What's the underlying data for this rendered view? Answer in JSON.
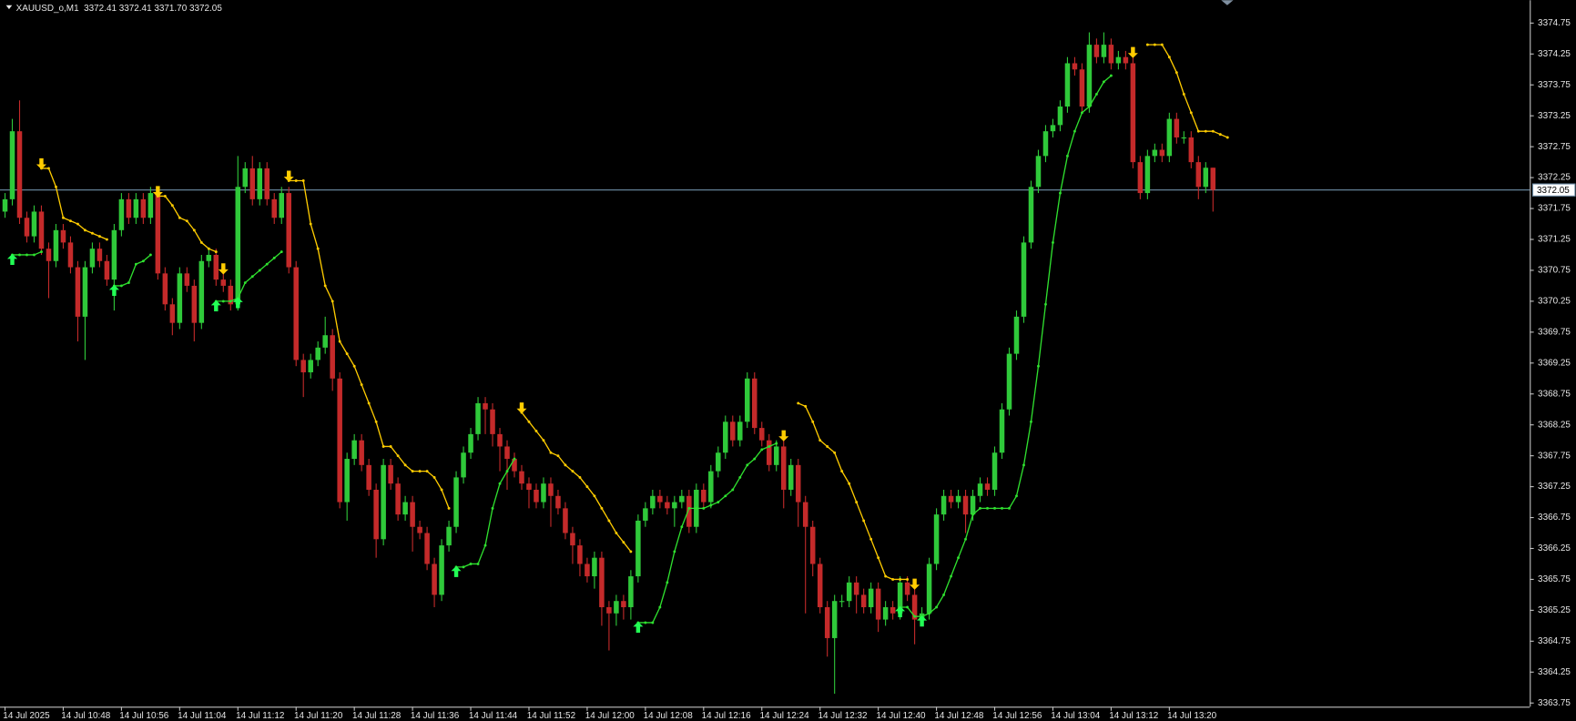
{
  "chart_data": {
    "type": "candlestick",
    "title": "XAUUSD_o,M1",
    "quote": "3372.41 3372.41 3371.70 3372.05",
    "bull_color": "#2fc93a",
    "bear_color": "#c42a2a",
    "current_price": 3372.05,
    "current_price_color": "#6f8fa8",
    "ylim": [
      3363.69,
      3375.12
    ],
    "yticks": [
      3374.75,
      3374.25,
      3373.75,
      3373.25,
      3372.75,
      3372.25,
      3371.75,
      3371.25,
      3370.75,
      3370.25,
      3369.75,
      3369.25,
      3368.75,
      3368.25,
      3367.75,
      3367.25,
      3366.75,
      3366.25,
      3365.75,
      3365.25,
      3364.75,
      3364.25,
      3363.75
    ],
    "xticks": [
      {
        "value": 0,
        "label": "14 Jul 2025"
      },
      {
        "value": 8,
        "label": "14 Jul 10:48"
      },
      {
        "value": 16,
        "label": "14 Jul 10:56"
      },
      {
        "value": 24,
        "label": "14 Jul 11:04"
      },
      {
        "value": 32,
        "label": "14 Jul 11:12"
      },
      {
        "value": 40,
        "label": "14 Jul 11:20"
      },
      {
        "value": 48,
        "label": "14 Jul 11:28"
      },
      {
        "value": 56,
        "label": "14 Jul 11:36"
      },
      {
        "value": 64,
        "label": "14 Jul 11:44"
      },
      {
        "value": 72,
        "label": "14 Jul 11:52"
      },
      {
        "value": 80,
        "label": "14 Jul 12:00"
      },
      {
        "value": 88,
        "label": "14 Jul 12:08"
      },
      {
        "value": 96,
        "label": "14 Jul 12:16"
      },
      {
        "value": 104,
        "label": "14 Jul 12:24"
      },
      {
        "value": 112,
        "label": "14 Jul 12:32"
      },
      {
        "value": 120,
        "label": "14 Jul 12:40"
      },
      {
        "value": 128,
        "label": "14 Jul 12:48"
      },
      {
        "value": 136,
        "label": "14 Jul 12:56"
      },
      {
        "value": 144,
        "label": "14 Jul 13:04"
      },
      {
        "value": 152,
        "label": "14 Jul 13:12"
      },
      {
        "value": 160,
        "label": "14 Jul 13:20"
      }
    ],
    "open": [
      3371.7,
      3371.9,
      3373.0,
      3371.6,
      3371.3,
      3371.7,
      3371.1,
      3370.9,
      3371.4,
      3371.2,
      3370.8,
      3370.0,
      3370.8,
      3371.1,
      3370.9,
      3370.6,
      3371.4,
      3371.9,
      3371.6,
      3371.9,
      3371.6,
      3372.0,
      3370.7,
      3370.2,
      3369.9,
      3370.7,
      3370.5,
      3369.9,
      3370.9,
      3371.0,
      3370.6,
      3370.5,
      3370.2,
      3372.1,
      3372.4,
      3371.9,
      3372.4,
      3371.9,
      3371.6,
      3372.0,
      3370.8,
      3369.3,
      3369.1,
      3369.3,
      3369.5,
      3369.7,
      3369.0,
      3367.0,
      3367.7,
      3368.0,
      3367.6,
      3367.2,
      3366.4,
      3367.6,
      3367.3,
      3366.8,
      3367.0,
      3366.6,
      3366.5,
      3366.0,
      3365.5,
      3366.3,
      3366.6,
      3367.4,
      3367.8,
      3368.1,
      3368.6,
      3368.5,
      3368.1,
      3367.9,
      3367.7,
      3367.5,
      3367.3,
      3367.2,
      3367.0,
      3367.3,
      3367.1,
      3366.9,
      3366.5,
      3366.3,
      3366.0,
      3365.8,
      3366.1,
      3365.3,
      3365.2,
      3365.4,
      3365.3,
      3365.8,
      3366.7,
      3366.9,
      3367.1,
      3367.0,
      3366.9,
      3367.0,
      3367.1,
      3366.6,
      3367.2,
      3367.0,
      3367.5,
      3367.8,
      3368.3,
      3368.0,
      3368.3,
      3369.0,
      3368.2,
      3368.0,
      3367.6,
      3367.9,
      3367.2,
      3367.6,
      3367.0,
      3366.6,
      3366.0,
      3365.3,
      3364.8,
      3365.4,
      3365.4,
      3365.7,
      3365.5,
      3365.3,
      3365.6,
      3365.1,
      3365.3,
      3365.2,
      3365.7,
      3365.5,
      3365.1,
      3365.2,
      3366.0,
      3366.8,
      3367.1,
      3367.0,
      3367.1,
      3366.8,
      3367.1,
      3367.3,
      3367.2,
      3367.8,
      3368.5,
      3369.4,
      3370.0,
      3371.2,
      3372.1,
      3372.6,
      3373.0,
      3373.1,
      3373.4,
      3374.1,
      3374.0,
      3373.4,
      3374.4,
      3374.2,
      3374.4,
      3374.1,
      3374.2,
      3374.1,
      3372.5,
      3372.0,
      3372.6,
      3372.7,
      3372.6,
      3373.2,
      3372.9,
      3372.9,
      3372.5,
      3372.1,
      3372.41
    ],
    "high": [
      3372.0,
      3373.2,
      3373.5,
      3371.7,
      3371.8,
      3371.8,
      3371.2,
      3371.5,
      3371.5,
      3371.3,
      3370.9,
      3370.9,
      3371.2,
      3371.2,
      3371.0,
      3371.5,
      3372.0,
      3372.0,
      3372.0,
      3372.0,
      3372.1,
      3372.1,
      3370.8,
      3370.3,
      3370.8,
      3370.8,
      3370.6,
      3371.0,
      3371.1,
      3371.1,
      3370.7,
      3370.6,
      3372.6,
      3372.5,
      3372.6,
      3372.5,
      3372.5,
      3372.0,
      3372.1,
      3372.1,
      3370.9,
      3369.4,
      3369.4,
      3369.6,
      3370.0,
      3369.8,
      3369.1,
      3367.8,
      3368.1,
      3368.1,
      3367.7,
      3367.3,
      3367.7,
      3367.7,
      3367.4,
      3367.1,
      3367.1,
      3366.7,
      3366.6,
      3366.1,
      3366.4,
      3366.7,
      3367.5,
      3367.9,
      3368.2,
      3368.7,
      3368.7,
      3368.6,
      3368.2,
      3368.0,
      3367.8,
      3367.6,
      3367.4,
      3367.3,
      3367.4,
      3367.4,
      3367.2,
      3367.0,
      3366.6,
      3366.4,
      3366.1,
      3366.2,
      3366.2,
      3365.4,
      3365.5,
      3365.5,
      3365.9,
      3366.8,
      3367.0,
      3367.2,
      3367.2,
      3367.1,
      3367.1,
      3367.2,
      3367.2,
      3367.3,
      3367.3,
      3367.6,
      3367.9,
      3368.4,
      3368.4,
      3368.4,
      3369.1,
      3369.1,
      3368.3,
      3368.1,
      3368.0,
      3368.0,
      3367.7,
      3367.7,
      3367.1,
      3366.7,
      3366.1,
      3365.4,
      3365.5,
      3365.5,
      3365.8,
      3365.8,
      3365.6,
      3365.7,
      3365.7,
      3365.4,
      3365.4,
      3365.8,
      3365.8,
      3365.6,
      3365.3,
      3366.1,
      3366.9,
      3367.2,
      3367.2,
      3367.2,
      3367.2,
      3367.2,
      3367.4,
      3367.4,
      3367.9,
      3368.6,
      3369.5,
      3370.1,
      3371.3,
      3372.2,
      3372.7,
      3373.1,
      3373.2,
      3373.5,
      3374.2,
      3374.2,
      3374.1,
      3374.6,
      3374.5,
      3374.6,
      3374.5,
      3374.3,
      3374.3,
      3374.2,
      3372.6,
      3372.7,
      3372.8,
      3372.8,
      3373.3,
      3373.3,
      3373.0,
      3373.0,
      3372.6,
      3372.5,
      3372.41
    ],
    "low": [
      3371.6,
      3371.8,
      3371.5,
      3371.2,
      3371.2,
      3371.0,
      3370.3,
      3370.8,
      3371.1,
      3370.7,
      3369.6,
      3369.3,
      3370.7,
      3370.8,
      3370.5,
      3370.1,
      3371.3,
      3371.5,
      3371.5,
      3371.5,
      3371.5,
      3370.6,
      3370.1,
      3369.7,
      3369.8,
      3370.4,
      3369.6,
      3369.8,
      3370.8,
      3370.5,
      3370.4,
      3370.1,
      3370.1,
      3372.0,
      3371.8,
      3371.8,
      3371.8,
      3371.5,
      3371.5,
      3370.7,
      3369.2,
      3368.7,
      3369.0,
      3369.2,
      3369.4,
      3368.8,
      3366.9,
      3366.7,
      3367.6,
      3367.5,
      3367.1,
      3366.1,
      3366.3,
      3367.2,
      3366.7,
      3366.7,
      3366.2,
      3366.4,
      3365.9,
      3365.3,
      3365.4,
      3366.2,
      3366.5,
      3367.3,
      3367.7,
      3368.0,
      3368.1,
      3367.9,
      3367.5,
      3367.2,
      3367.4,
      3367.2,
      3366.9,
      3366.9,
      3366.9,
      3366.6,
      3366.8,
      3366.4,
      3366.0,
      3365.8,
      3365.7,
      3365.6,
      3365.0,
      3364.6,
      3365.0,
      3365.1,
      3365.1,
      3365.7,
      3366.6,
      3366.8,
      3366.9,
      3366.8,
      3366.6,
      3366.9,
      3366.5,
      3366.5,
      3366.9,
      3366.9,
      3367.4,
      3367.7,
      3367.9,
      3367.9,
      3368.2,
      3368.1,
      3367.9,
      3367.5,
      3367.5,
      3366.9,
      3367.1,
      3366.6,
      3365.2,
      3365.8,
      3365.2,
      3364.5,
      3363.9,
      3365.3,
      3365.3,
      3365.2,
      3365.2,
      3365.2,
      3364.9,
      3365.0,
      3365.1,
      3365.1,
      3365.4,
      3364.7,
      3365.0,
      3365.1,
      3365.9,
      3366.7,
      3366.9,
      3366.9,
      3366.5,
      3366.7,
      3367.0,
      3367.1,
      3367.1,
      3367.7,
      3368.4,
      3369.3,
      3369.9,
      3371.1,
      3372.0,
      3372.5,
      3372.9,
      3373.0,
      3373.3,
      3373.9,
      3373.3,
      3373.3,
      3374.1,
      3374.1,
      3374.0,
      3374.0,
      3374.0,
      3372.4,
      3371.9,
      3371.9,
      3372.5,
      3372.5,
      3372.5,
      3372.8,
      3372.8,
      3372.4,
      3371.9,
      3372.0,
      3371.7
    ],
    "close": [
      3371.9,
      3373.0,
      3371.6,
      3371.3,
      3371.7,
      3371.1,
      3370.9,
      3371.4,
      3371.2,
      3370.8,
      3370.0,
      3370.8,
      3371.1,
      3370.9,
      3370.6,
      3371.4,
      3371.9,
      3371.6,
      3371.9,
      3371.6,
      3372.0,
      3370.7,
      3370.2,
      3369.9,
      3370.7,
      3370.5,
      3369.9,
      3370.9,
      3371.0,
      3370.6,
      3370.5,
      3370.2,
      3372.1,
      3372.4,
      3371.9,
      3372.4,
      3371.9,
      3371.6,
      3372.0,
      3370.8,
      3369.3,
      3369.1,
      3369.3,
      3369.5,
      3369.7,
      3369.0,
      3367.0,
      3367.7,
      3368.0,
      3367.6,
      3367.2,
      3366.4,
      3367.6,
      3367.3,
      3366.8,
      3367.0,
      3366.6,
      3366.5,
      3366.0,
      3365.5,
      3366.3,
      3366.6,
      3367.4,
      3367.8,
      3368.1,
      3368.6,
      3368.5,
      3368.1,
      3367.9,
      3367.7,
      3367.5,
      3367.3,
      3367.2,
      3367.0,
      3367.3,
      3367.1,
      3366.9,
      3366.5,
      3366.3,
      3366.0,
      3365.8,
      3366.1,
      3365.3,
      3365.2,
      3365.4,
      3365.3,
      3365.8,
      3366.7,
      3366.9,
      3367.1,
      3367.0,
      3366.9,
      3367.0,
      3367.1,
      3366.6,
      3367.2,
      3367.0,
      3367.5,
      3367.8,
      3368.3,
      3368.0,
      3368.3,
      3369.0,
      3368.2,
      3368.0,
      3367.6,
      3367.9,
      3367.2,
      3367.6,
      3367.0,
      3366.6,
      3366.0,
      3365.3,
      3364.8,
      3365.4,
      3365.4,
      3365.7,
      3365.5,
      3365.3,
      3365.6,
      3365.1,
      3365.3,
      3365.2,
      3365.7,
      3365.5,
      3365.1,
      3365.2,
      3366.0,
      3366.8,
      3367.1,
      3367.0,
      3367.1,
      3366.8,
      3367.1,
      3367.3,
      3367.2,
      3367.8,
      3368.5,
      3369.4,
      3370.0,
      3371.2,
      3372.1,
      3372.6,
      3373.0,
      3373.1,
      3373.4,
      3374.1,
      3374.0,
      3373.4,
      3374.4,
      3374.2,
      3374.4,
      3374.1,
      3374.2,
      3374.1,
      3372.5,
      3372.0,
      3372.6,
      3372.7,
      3372.6,
      3373.2,
      3372.9,
      3372.9,
      3372.5,
      3372.1,
      3372.41,
      3372.05
    ],
    "indicator_lines": [
      {
        "color": "#ffcc00",
        "values": [
          null,
          null,
          null,
          null,
          null,
          3372.4,
          3372.4,
          3372.1,
          3371.6,
          3371.55,
          3371.5,
          3371.4,
          3371.35,
          3371.3,
          3371.25,
          null,
          null,
          null,
          null,
          null,
          null,
          3371.95,
          3371.95,
          3371.8,
          3371.6,
          3371.55,
          3371.4,
          3371.2,
          3371.1,
          3371.05,
          null,
          null,
          null,
          null,
          null,
          null,
          null,
          null,
          null,
          3372.2,
          3372.2,
          3372.2,
          3371.5,
          3371.1,
          3370.5,
          3370.25,
          3369.6,
          3369.4,
          3369.2,
          3368.9,
          3368.6,
          3368.3,
          3367.9,
          3367.9,
          3367.75,
          3367.6,
          3367.5,
          3367.5,
          3367.5,
          3367.4,
          3367.2,
          3366.9,
          null,
          null,
          null,
          null,
          null,
          null,
          null,
          null,
          null,
          3368.45,
          3368.3,
          3368.15,
          3368.0,
          3367.8,
          3367.75,
          3367.6,
          3367.5,
          3367.4,
          3367.25,
          3367.1,
          3366.9,
          3366.7,
          3366.5,
          3366.35,
          3366.2,
          null,
          null,
          null,
          null,
          null,
          null,
          null,
          null,
          null,
          null,
          null,
          null,
          null,
          null,
          null,
          null,
          null,
          null,
          null,
          null,
          null,
          null,
          3368.6,
          3368.55,
          3368.3,
          3368.0,
          3367.9,
          3367.8,
          3367.5,
          3367.3,
          3367.0,
          3366.7,
          3366.4,
          3366.1,
          3365.8,
          3365.75,
          3365.75,
          3365.75,
          null,
          null,
          null,
          null,
          null,
          null,
          null,
          null,
          null,
          null,
          null,
          null,
          null,
          null,
          null,
          null,
          null,
          null,
          null,
          null,
          null,
          null,
          null,
          null,
          null,
          null,
          null,
          null,
          null,
          null,
          null,
          null,
          3374.4,
          3374.4,
          3374.4,
          3374.2,
          3373.95,
          3373.6,
          3373.3,
          3373.0,
          3373.0,
          3373.0,
          3372.95,
          3372.9
        ]
      },
      {
        "color": "#2fe02f",
        "values": [
          null,
          3371.0,
          3371.0,
          3371.0,
          3371.0,
          3371.05,
          null,
          null,
          null,
          null,
          null,
          null,
          null,
          null,
          null,
          3370.5,
          3370.5,
          3370.55,
          3370.85,
          3370.9,
          3371.0,
          null,
          null,
          null,
          null,
          null,
          null,
          null,
          null,
          3370.25,
          3370.25,
          3370.25,
          3370.3,
          3370.55,
          3370.65,
          3370.75,
          3370.85,
          3370.95,
          3371.05,
          null,
          null,
          null,
          null,
          null,
          null,
          null,
          null,
          null,
          null,
          null,
          null,
          null,
          null,
          null,
          null,
          null,
          null,
          null,
          null,
          null,
          null,
          null,
          3365.95,
          3365.95,
          3366.0,
          3366.0,
          3366.3,
          3366.9,
          3367.3,
          3367.5,
          3367.7,
          null,
          null,
          null,
          null,
          null,
          null,
          null,
          null,
          null,
          null,
          null,
          null,
          null,
          null,
          null,
          null,
          3365.05,
          3365.05,
          3365.05,
          3365.3,
          3365.7,
          3366.2,
          3366.6,
          3366.9,
          3366.9,
          3366.9,
          3366.95,
          3367.0,
          3367.1,
          3367.2,
          3367.4,
          3367.6,
          3367.7,
          3367.85,
          3367.9,
          3367.95,
          null,
          null,
          null,
          null,
          null,
          null,
          null,
          null,
          null,
          null,
          null,
          null,
          null,
          null,
          null,
          null,
          3365.3,
          3365.3,
          3365.15,
          3365.15,
          3365.2,
          3365.3,
          3365.5,
          3365.8,
          3366.1,
          3366.4,
          3366.8,
          3366.9,
          3366.9,
          3366.9,
          3366.9,
          3366.9,
          3367.1,
          3367.6,
          3368.3,
          3369.2,
          3370.2,
          3371.2,
          3372.0,
          3372.6,
          3373.0,
          3373.3,
          3373.4,
          3373.6,
          3373.8,
          3373.9,
          null,
          null,
          null,
          null,
          null,
          null,
          null,
          null,
          null,
          null,
          null,
          null,
          null,
          null
        ]
      }
    ],
    "down_arrows": [
      5,
      21,
      30,
      39,
      71,
      107,
      125,
      155
    ],
    "down_arrow_color": "#ffcc00",
    "up_arrows": [
      1,
      15,
      29,
      32,
      62,
      87,
      123,
      126
    ],
    "up_arrow_color": "#22ff55"
  }
}
